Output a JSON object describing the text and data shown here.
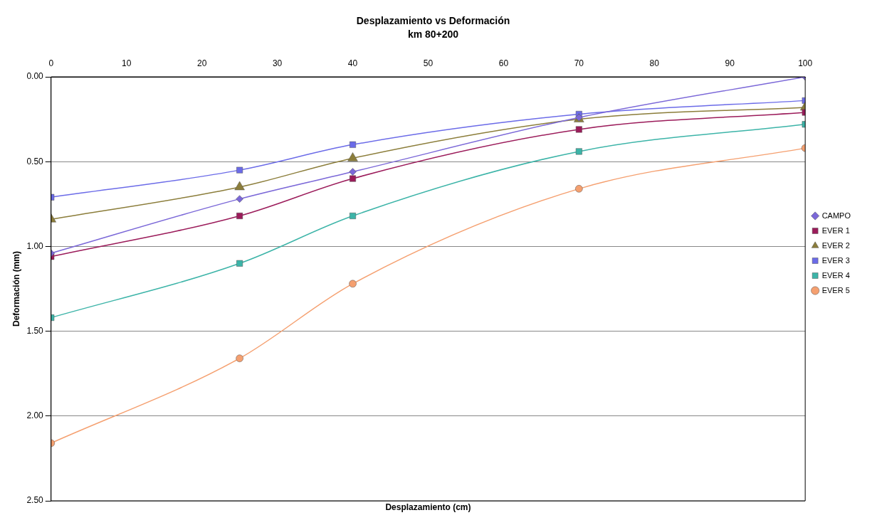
{
  "chart_data": {
    "type": "line",
    "title": "Desplazamiento vs Deformación",
    "subtitle": "km 80+200",
    "xlabel": "Desplazamiento (cm)",
    "ylabel": "Deformación (mm)",
    "x": [
      0,
      25,
      40,
      70,
      100
    ],
    "series": [
      {
        "name": "CAMPO",
        "color": "#7b68d8",
        "marker": "diamond",
        "values": [
          1.04,
          0.72,
          0.56,
          0.24,
          0
        ]
      },
      {
        "name": "EVER 1",
        "color": "#9b1b5a",
        "marker": "square",
        "values": [
          1.06,
          0.82,
          0.6,
          0.31,
          0.21
        ]
      },
      {
        "name": "EVER 2",
        "color": "#8b7d3a",
        "marker": "triangle",
        "values": [
          0.84,
          0.65,
          0.48,
          0.25,
          0.18
        ]
      },
      {
        "name": "EVER 3",
        "color": "#6b6be8",
        "marker": "square",
        "values": [
          0.71,
          0.55,
          0.4,
          0.22,
          0.14
        ]
      },
      {
        "name": "EVER 4",
        "color": "#3cb4a8",
        "marker": "square",
        "values": [
          1.42,
          1.1,
          0.82,
          0.44,
          0.28
        ]
      },
      {
        "name": "EVER 5",
        "color": "#f5a070",
        "marker": "circle",
        "values": [
          2.16,
          1.66,
          1.22,
          0.66,
          0.42
        ]
      }
    ],
    "xlim": [
      0,
      100
    ],
    "xticks": [
      0,
      10,
      20,
      30,
      40,
      50,
      60,
      70,
      80,
      90,
      100
    ],
    "ylim": [
      2.5,
      0
    ],
    "yticks": [
      {
        "value": 0,
        "label": "0.00"
      },
      {
        "value": 0.5,
        "label": "0.50"
      },
      {
        "value": 1,
        "label": "1.00"
      },
      {
        "value": 1.5,
        "label": "1.50"
      },
      {
        "value": 2,
        "label": "2.00"
      },
      {
        "value": 2.5,
        "label": "2.50"
      }
    ],
    "grid": "y",
    "legend": "right",
    "line_style": "solid"
  }
}
